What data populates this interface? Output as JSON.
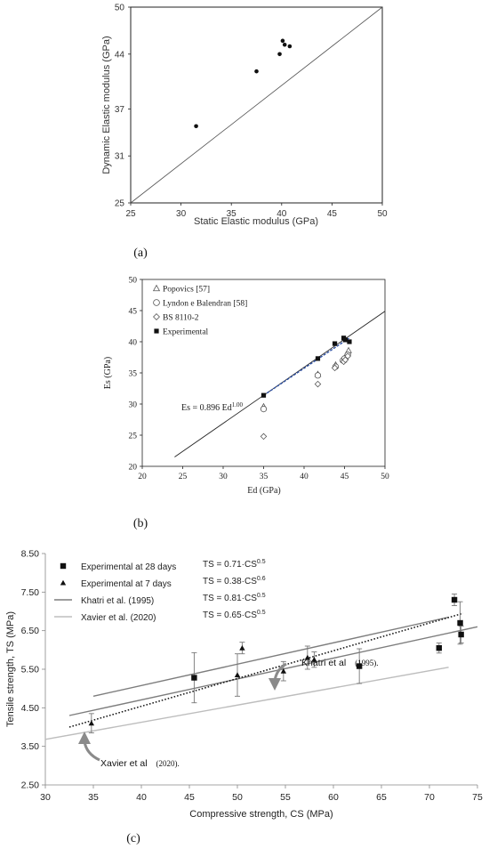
{
  "chart_data": [
    {
      "id": "a",
      "type": "scatter",
      "panel_label": "(a)",
      "xlabel": "Static Elastic modulus (GPa)",
      "ylabel": "Dynamic Elastic modulus (GPa)",
      "xlim": [
        25,
        50
      ],
      "ylim": [
        25,
        50
      ],
      "xticks": [
        25,
        30,
        35,
        40,
        45,
        50
      ],
      "yticks": [
        25,
        31,
        37,
        44,
        50
      ],
      "points": [
        {
          "x": 31.5,
          "y": 34.8
        },
        {
          "x": 37.5,
          "y": 41.8
        },
        {
          "x": 39.8,
          "y": 44.0
        },
        {
          "x": 40.1,
          "y": 45.7
        },
        {
          "x": 40.3,
          "y": 45.2
        },
        {
          "x": 40.8,
          "y": 45.0
        }
      ],
      "reference_line": {
        "x": [
          25,
          50
        ],
        "y": [
          25,
          50
        ]
      }
    },
    {
      "id": "b",
      "type": "scatter",
      "panel_label": "(b)",
      "xlabel": "Ed (GPa)",
      "ylabel": "Es (GPa)",
      "xlim": [
        20,
        50
      ],
      "ylim": [
        20,
        50
      ],
      "xticks": [
        20,
        25,
        30,
        35,
        40,
        45,
        50
      ],
      "yticks": [
        20,
        25,
        30,
        35,
        40,
        45,
        50
      ],
      "legend": [
        {
          "name": "Popovics  [57]",
          "marker": "triangle-open"
        },
        {
          "name": "Lyndon e Balendran  [58]",
          "marker": "circle-open"
        },
        {
          "name": "BS 8110-2",
          "marker": "diamond-open"
        },
        {
          "name": "Experimental",
          "marker": "square-filled"
        }
      ],
      "annotation": {
        "prefix": "Es = 0.896 Ed",
        "sup": "1.00"
      },
      "series": [
        {
          "name": "Popovics  [57]",
          "marker": "triangle-open",
          "x": [
            35.0,
            41.7,
            43.9,
            44.9,
            45.1,
            45.5
          ],
          "y": [
            29.6,
            34.8,
            36.3,
            37.1,
            37.6,
            38.6
          ]
        },
        {
          "name": "Lyndon e Balendran  [58]",
          "marker": "circle-open",
          "x": [
            35.0,
            41.7,
            43.9,
            44.8,
            45.0,
            45.4
          ],
          "y": [
            29.2,
            34.6,
            36.0,
            37.0,
            37.3,
            37.9
          ]
        },
        {
          "name": "BS 8110-2",
          "marker": "diamond-open",
          "x": [
            35.0,
            41.7,
            43.8,
            44.9,
            45.1,
            45.4
          ],
          "y": [
            24.8,
            33.2,
            35.8,
            36.8,
            37.1,
            37.7
          ]
        },
        {
          "name": "Experimental",
          "marker": "square-filled",
          "x": [
            35.0,
            41.7,
            43.8,
            44.9,
            45.1,
            45.6
          ],
          "y": [
            31.4,
            37.3,
            39.7,
            40.6,
            40.3,
            40.0
          ]
        }
      ],
      "fit_line": {
        "x": [
          24,
          50
        ],
        "y": [
          21.5,
          44.9
        ]
      },
      "trend_line": {
        "x": [
          35,
          45.6
        ],
        "y": [
          31.4,
          40.6
        ]
      }
    },
    {
      "id": "c",
      "type": "scatter",
      "panel_label": "(c)",
      "xlabel": "Compressive strength, CS (MPa)",
      "ylabel": "Tensile strength, TS (MPa)",
      "xlim": [
        30,
        75
      ],
      "ylim": [
        2.5,
        8.5
      ],
      "xticks": [
        30,
        35,
        40,
        45,
        50,
        55,
        60,
        65,
        70,
        75
      ],
      "yticks": [
        "2.50",
        "3.50",
        "4.50",
        "5.50",
        "6.50",
        "7.50",
        "8.50"
      ],
      "legend": [
        {
          "name": "Experimental at 28 days",
          "marker": "square-filled",
          "eq": "TS = 0.71·CS",
          "sup": "0.5"
        },
        {
          "name": "Experimental at 7 days",
          "marker": "triangle-filled",
          "eq": "TS = 0.38·CS",
          "sup": "0.6"
        },
        {
          "name": "Khatri et al. (1995)",
          "marker": "line-gray",
          "eq": "TS = 0.81·CS",
          "sup": "0.5"
        },
        {
          "name": "Xavier et al. (2020)",
          "marker": "line-lightgray",
          "eq": "TS = 0.65·CS",
          "sup": "0.5"
        }
      ],
      "series": [
        {
          "name": "Experimental at 28 days",
          "marker": "square-filled",
          "x": [
            45.5,
            62.7,
            71.0,
            72.6,
            73.2,
            73.3
          ],
          "y": [
            5.28,
            5.58,
            6.05,
            7.3,
            6.7,
            6.4
          ],
          "err": [
            0.65,
            0.45,
            0.13,
            0.15,
            0.55,
            0.22
          ]
        },
        {
          "name": "Experimental at 7 days",
          "marker": "triangle-filled",
          "x": [
            34.8,
            50.0,
            50.5,
            54.8,
            57.3,
            58.0
          ],
          "y": [
            4.1,
            5.35,
            6.05,
            5.45,
            5.8,
            5.75
          ],
          "err": [
            0.25,
            0.55,
            0.15,
            0.25,
            0.3,
            0.2
          ]
        }
      ],
      "curves": [
        {
          "name": "Khatri et al. (1995)",
          "color": "#7d7d7d",
          "x": [
            32.5,
            75
          ],
          "y": [
            4.3,
            6.6
          ]
        },
        {
          "name": "Khatri upper",
          "color": "#7d7d7d",
          "x": [
            35,
            72
          ],
          "y": [
            4.8,
            6.85
          ]
        },
        {
          "name": "Xavier et al. (2020)",
          "color": "#bdbdbd",
          "x": [
            30,
            72
          ],
          "y": [
            3.68,
            5.55
          ]
        }
      ],
      "dotted_fit": {
        "x": [
          32.5,
          73.5
        ],
        "y": [
          4.0,
          6.95
        ]
      },
      "annotations": [
        {
          "text": "Khatri et al",
          "suffix": "(1995)."
        },
        {
          "text": "Xavier et al",
          "suffix": "(2020)."
        }
      ]
    }
  ]
}
